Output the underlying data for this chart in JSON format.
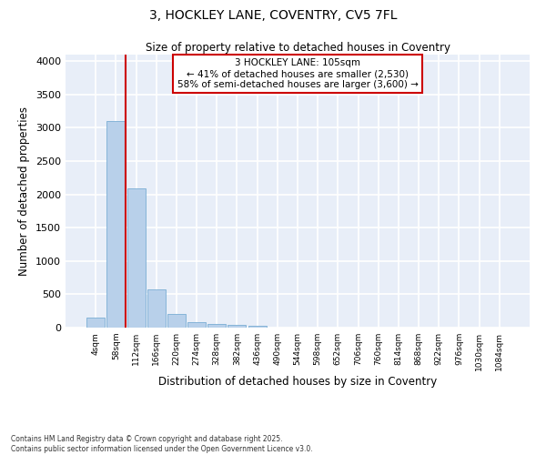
{
  "title_line1": "3, HOCKLEY LANE, COVENTRY, CV5 7FL",
  "title_line2": "Size of property relative to detached houses in Coventry",
  "xlabel": "Distribution of detached houses by size in Coventry",
  "ylabel": "Number of detached properties",
  "bar_color": "#b8d0ea",
  "bar_edge_color": "#7aadd4",
  "background_color": "#e8eef8",
  "grid_color": "#ffffff",
  "ylim": [
    0,
    4100
  ],
  "yticks": [
    0,
    500,
    1000,
    1500,
    2000,
    2500,
    3000,
    3500,
    4000
  ],
  "categories": [
    "4sqm",
    "58sqm",
    "112sqm",
    "166sqm",
    "220sqm",
    "274sqm",
    "328sqm",
    "382sqm",
    "436sqm",
    "490sqm",
    "544sqm",
    "598sqm",
    "652sqm",
    "706sqm",
    "760sqm",
    "814sqm",
    "868sqm",
    "922sqm",
    "976sqm",
    "1030sqm",
    "1084sqm"
  ],
  "values": [
    150,
    3100,
    2090,
    580,
    200,
    80,
    60,
    40,
    25,
    5,
    2,
    1,
    1,
    0,
    0,
    0,
    0,
    0,
    0,
    0,
    0
  ],
  "red_line_x": 2.0,
  "annotation_text_line1": "3 HOCKLEY LANE: 105sqm",
  "annotation_text_line2": "← 41% of detached houses are smaller (2,530)",
  "annotation_text_line3": "58% of semi-detached houses are larger (3,600) →",
  "annotation_box_color": "#ffffff",
  "annotation_border_color": "#cc0000",
  "footnote_line1": "Contains HM Land Registry data © Crown copyright and database right 2025.",
  "footnote_line2": "Contains public sector information licensed under the Open Government Licence v3.0."
}
